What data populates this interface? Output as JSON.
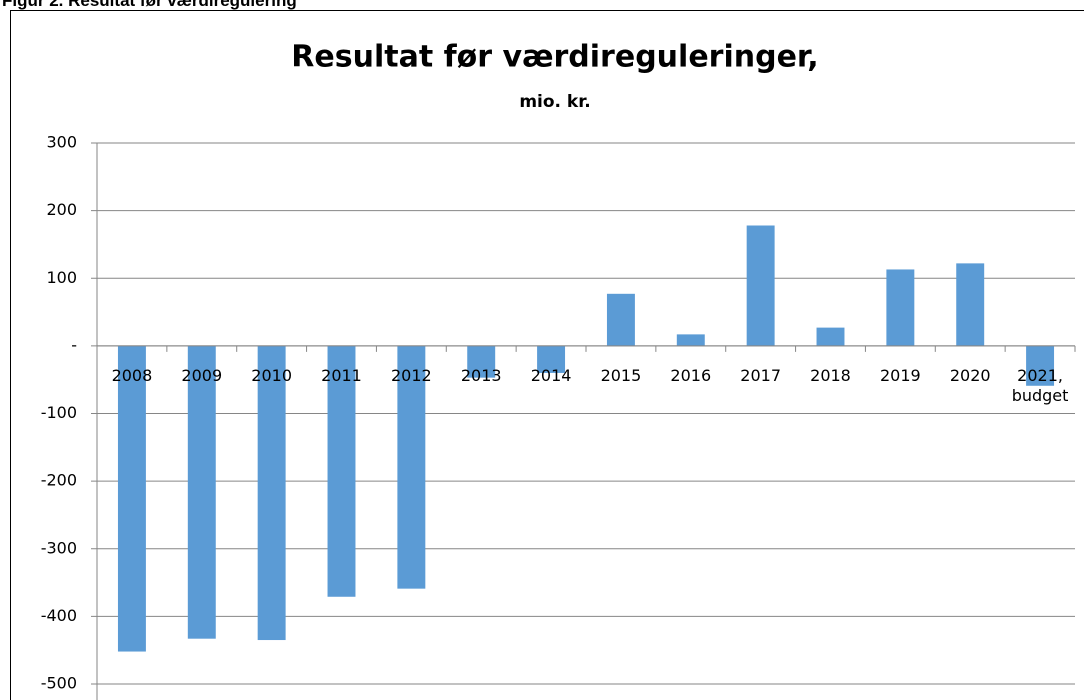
{
  "heading": "Figur 2. Resultat før værdiregulering",
  "chart_data": {
    "type": "bar",
    "title": "Resultat før værdireguleringer,",
    "subtitle": "mio. kr.",
    "categories": [
      "2008",
      "2009",
      "2010",
      "2011",
      "2012",
      "2013",
      "2014",
      "2015",
      "2016",
      "2017",
      "2018",
      "2019",
      "2020",
      "2021, budget"
    ],
    "values": [
      -452,
      -433,
      -435,
      -371,
      -359,
      -47,
      -40,
      77,
      17,
      178,
      27,
      113,
      122,
      -59
    ],
    "color": "#5b9bd5",
    "ylim": [
      -500,
      300
    ],
    "yticks": [
      300,
      200,
      100,
      {
        "value": 0,
        "label": "-"
      },
      -100,
      -200,
      -300,
      -400,
      -500
    ],
    "grid": true
  }
}
